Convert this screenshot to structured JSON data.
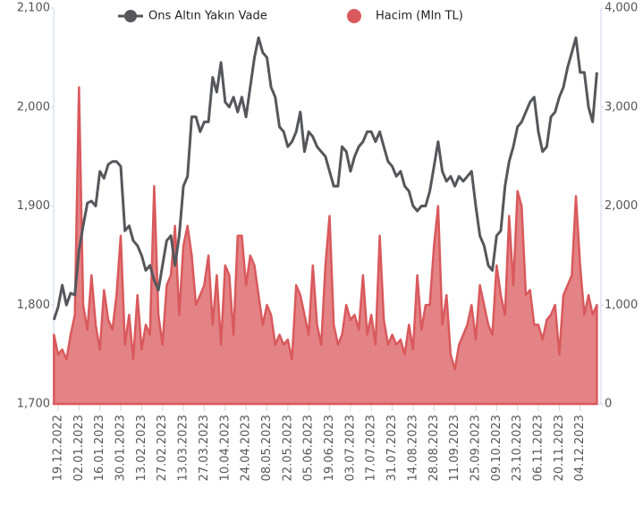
{
  "chart_data": {
    "type": "line",
    "categories": [
      null,
      "19.12.2022",
      null,
      null,
      null,
      null,
      "02.01.2023",
      null,
      null,
      null,
      null,
      "16.01.2023",
      null,
      null,
      null,
      null,
      "30.01.2023",
      null,
      null,
      null,
      null,
      "13.02.2023",
      null,
      null,
      null,
      null,
      "27.02.2023",
      null,
      null,
      null,
      null,
      "13.03.2023",
      null,
      null,
      null,
      null,
      "27.03.2023",
      null,
      null,
      null,
      null,
      "10.04.2023",
      null,
      null,
      null,
      null,
      "24.04.2023",
      null,
      null,
      null,
      null,
      "08.05.2023",
      null,
      null,
      null,
      null,
      "22.05.2023",
      null,
      null,
      null,
      null,
      "05.06.2023",
      null,
      null,
      null,
      null,
      "19.06.2023",
      null,
      null,
      null,
      null,
      "03.07.2023",
      null,
      null,
      null,
      null,
      "17.07.2023",
      null,
      null,
      null,
      null,
      "31.07.2023",
      null,
      null,
      null,
      null,
      "14.08.2023",
      null,
      null,
      null,
      null,
      "28.08.2023",
      null,
      null,
      null,
      null,
      "11.09.2023",
      null,
      null,
      null,
      null,
      "25.09.2023",
      null,
      null,
      null,
      null,
      "09.10.2023",
      null,
      null,
      null,
      null,
      "23.10.2023",
      null,
      null,
      null,
      null,
      "06.11.2023",
      null,
      null,
      null,
      null,
      "20.11.2023",
      null,
      null,
      null,
      null,
      "04.12.2023",
      null,
      null,
      null,
      null
    ],
    "series": [
      {
        "name": "Ons Altın Yakın Vade",
        "color": "#55575b",
        "values": [
          1785,
          1798,
          1820,
          1800,
          1812,
          1810,
          1855,
          1880,
          1903,
          1905,
          1900,
          1935,
          1928,
          1942,
          1945,
          1945,
          1940,
          1875,
          1880,
          1865,
          1860,
          1850,
          1835,
          1840,
          1825,
          1815,
          1840,
          1865,
          1870,
          1840,
          1870,
          1920,
          1930,
          1990,
          1990,
          1975,
          1985,
          1985,
          2030,
          2015,
          2045,
          2005,
          2000,
          2010,
          1995,
          2010,
          1990,
          2020,
          2050,
          2070,
          2055,
          2050,
          2020,
          2010,
          1980,
          1975,
          1960,
          1965,
          1975,
          1995,
          1955,
          1975,
          1970,
          1960,
          1955,
          1950,
          1935,
          1920,
          1920,
          1960,
          1955,
          1935,
          1950,
          1960,
          1965,
          1975,
          1975,
          1965,
          1975,
          1960,
          1945,
          1940,
          1930,
          1935,
          1920,
          1915,
          1900,
          1895,
          1900,
          1900,
          1915,
          1940,
          1965,
          1935,
          1925,
          1930,
          1920,
          1930,
          1925,
          1930,
          1935,
          1900,
          1870,
          1860,
          1840,
          1835,
          1870,
          1875,
          1920,
          1945,
          1960,
          1980,
          1985,
          1995,
          2005,
          2010,
          1975,
          1955,
          1960,
          1990,
          1995,
          2010,
          2020,
          2040,
          2055,
          2070,
          2035,
          2035,
          2000,
          1985,
          2035
        ]
      },
      {
        "name": "Hacim (Mln TL)",
        "color": "#d9595c",
        "axis": "y2",
        "area": true,
        "values": [
          700,
          500,
          550,
          450,
          700,
          900,
          3200,
          1000,
          750,
          1300,
          800,
          550,
          1150,
          850,
          750,
          1100,
          1700,
          600,
          900,
          450,
          1100,
          550,
          800,
          700,
          2200,
          900,
          600,
          1200,
          1300,
          1800,
          900,
          1600,
          1800,
          1500,
          1000,
          1100,
          1200,
          1500,
          800,
          1300,
          600,
          1400,
          1300,
          700,
          1700,
          1700,
          1200,
          1500,
          1400,
          1100,
          800,
          1000,
          900,
          600,
          700,
          600,
          650,
          450,
          1200,
          1100,
          900,
          700,
          1400,
          800,
          600,
          1400,
          1900,
          800,
          600,
          700,
          1000,
          850,
          900,
          750,
          1300,
          700,
          900,
          600,
          1700,
          850,
          600,
          700,
          600,
          650,
          500,
          800,
          550,
          1300,
          750,
          1000,
          1000,
          1600,
          2000,
          800,
          1100,
          500,
          350,
          600,
          700,
          800,
          1000,
          650,
          1200,
          1000,
          800,
          700,
          1400,
          1100,
          900,
          1900,
          1200,
          2150,
          2000,
          1100,
          1150,
          800,
          800,
          650,
          850,
          900,
          1000,
          500,
          1100,
          1200,
          1300,
          2100,
          1400,
          900,
          1100,
          900,
          1000
        ]
      }
    ],
    "ylim": [
      1700,
      2100
    ],
    "yticks": [
      {
        "value": 1700,
        "label": "1,700"
      },
      {
        "value": 1800,
        "label": "1,800"
      },
      {
        "value": 1900,
        "label": "1,900"
      },
      {
        "value": 2000,
        "label": "2,000"
      },
      {
        "value": 2100,
        "label": "2,100"
      }
    ],
    "y2lim": [
      0,
      4000
    ],
    "y2ticks": [
      0,
      {
        "value": 1000,
        "label": "1,000"
      },
      {
        "value": 2000,
        "label": "2,000"
      },
      {
        "value": 3000,
        "label": "3,000"
      },
      {
        "value": 4000,
        "label": "4,000"
      }
    ],
    "legend": "top"
  }
}
